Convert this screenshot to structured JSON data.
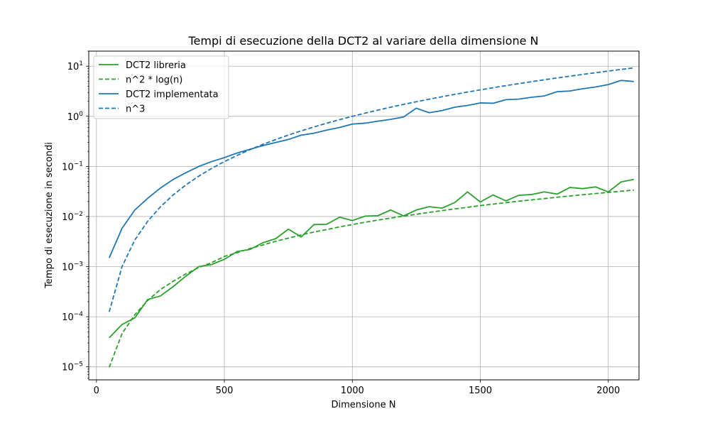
{
  "chart_data": {
    "type": "line",
    "title": "Tempi di esecuzione della DCT2 al variare della dimensione N",
    "xlabel": "Dimensione N",
    "ylabel": "Tempo di esecuzione in secondi",
    "xlim": [
      -30,
      2120
    ],
    "ylim": [
      5.5e-06,
      20
    ],
    "yscale": "log",
    "grid": true,
    "legend_position": "top-left",
    "x_ticks": [
      0,
      500,
      1000,
      1500,
      2000
    ],
    "y_ticks": [
      1e-05,
      0.0001,
      0.001,
      0.01,
      0.1,
      1,
      10
    ],
    "x_tick_labels": [
      "0",
      "500",
      "1000",
      "1500",
      "2000"
    ],
    "y_tick_labels": [
      {
        "base": "10",
        "exp": "−5"
      },
      {
        "base": "10",
        "exp": "−4"
      },
      {
        "base": "10",
        "exp": "−3"
      },
      {
        "base": "10",
        "exp": "−2"
      },
      {
        "base": "10",
        "exp": "−1"
      },
      {
        "base": "10",
        "exp": "0"
      },
      {
        "base": "10",
        "exp": "1"
      }
    ],
    "x": [
      50,
      100,
      150,
      200,
      250,
      300,
      350,
      400,
      450,
      500,
      550,
      600,
      650,
      700,
      750,
      800,
      850,
      900,
      950,
      1000,
      1050,
      1100,
      1150,
      1200,
      1250,
      1300,
      1350,
      1400,
      1450,
      1500,
      1550,
      1600,
      1650,
      1700,
      1750,
      1800,
      1850,
      1900,
      1950,
      2000,
      2050,
      2100
    ],
    "series": [
      {
        "name": "DCT2 libreria",
        "color": "#2ca02c",
        "dash": "solid",
        "values": [
          3.8e-05,
          7e-05,
          9.5e-05,
          0.00022,
          0.00026,
          0.0004,
          0.00065,
          0.001,
          0.0011,
          0.0014,
          0.002,
          0.0022,
          0.003,
          0.0036,
          0.0056,
          0.0039,
          0.0069,
          0.007,
          0.0097,
          0.0083,
          0.0102,
          0.0104,
          0.0135,
          0.0103,
          0.0135,
          0.0157,
          0.0147,
          0.019,
          0.031,
          0.0195,
          0.027,
          0.0205,
          0.0265,
          0.0275,
          0.031,
          0.028,
          0.038,
          0.036,
          0.039,
          0.031,
          0.049,
          0.055
        ]
      },
      {
        "name": "n^2 * log(n)",
        "color": "#2ca02c",
        "dash": "dashed",
        "values": [
          9.8e-06,
          4.6e-05,
          0.00011,
          0.00021,
          0.00035,
          0.00051,
          0.00072,
          0.00096,
          0.0012,
          0.0016,
          0.0019,
          0.0023,
          0.0027,
          0.0032,
          0.0037,
          0.0043,
          0.0049,
          0.0055,
          0.0062,
          0.0069,
          0.0077,
          0.0085,
          0.0093,
          0.0102,
          0.0111,
          0.0121,
          0.0131,
          0.0142,
          0.0153,
          0.0165,
          0.0177,
          0.0189,
          0.0202,
          0.0215,
          0.0228,
          0.0243,
          0.0257,
          0.0272,
          0.0287,
          0.0303,
          0.032,
          0.0337
        ]
      },
      {
        "name": "DCT2 implementata",
        "color": "#1f77b4",
        "dash": "solid",
        "values": [
          0.0015,
          0.0058,
          0.0135,
          0.023,
          0.037,
          0.055,
          0.075,
          0.1,
          0.125,
          0.15,
          0.185,
          0.22,
          0.26,
          0.3,
          0.345,
          0.42,
          0.46,
          0.53,
          0.6,
          0.7,
          0.73,
          0.8,
          0.87,
          0.97,
          1.45,
          1.18,
          1.3,
          1.52,
          1.65,
          1.85,
          1.82,
          2.15,
          2.2,
          2.4,
          2.55,
          3.1,
          3.2,
          3.55,
          3.85,
          4.3,
          5.2,
          4.95
        ]
      },
      {
        "name": "n^3",
        "color": "#1f77b4",
        "dash": "dashed",
        "values": [
          0.000125,
          0.001,
          0.0034,
          0.008,
          0.0156,
          0.027,
          0.0429,
          0.064,
          0.0911,
          0.125,
          0.166,
          0.216,
          0.275,
          0.343,
          0.422,
          0.512,
          0.614,
          0.729,
          0.857,
          1.0,
          1.158,
          1.331,
          1.521,
          1.728,
          1.953,
          2.197,
          2.46,
          2.744,
          3.049,
          3.375,
          3.724,
          4.096,
          4.492,
          4.913,
          5.359,
          5.832,
          6.332,
          6.859,
          7.415,
          8.0,
          8.615,
          9.261
        ]
      }
    ]
  }
}
